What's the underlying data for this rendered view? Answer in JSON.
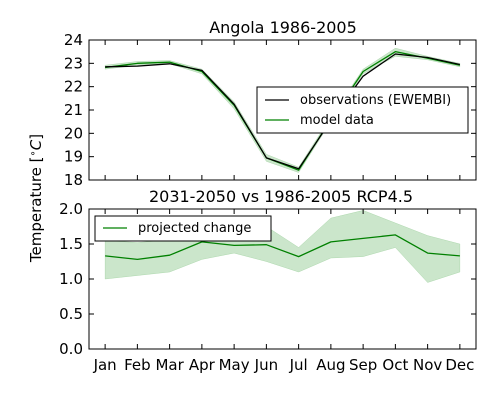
{
  "chart_data": [
    {
      "type": "line",
      "title": "Angola  1986-2005",
      "ylabel": "Temperature [$^\\circ C$]",
      "ylabel_parts": {
        "prefix": "Temperature [",
        "sup": "∘",
        "unit": "C",
        "suffix": "]"
      },
      "ylim": [
        18,
        24
      ],
      "yticks": [
        18,
        19,
        20,
        21,
        22,
        23,
        24
      ],
      "categories": [
        "Jan",
        "Feb",
        "Mar",
        "Apr",
        "May",
        "Jun",
        "Jul",
        "Aug",
        "Sep",
        "Oct",
        "Nov",
        "Dec"
      ],
      "legend_position": "center-right",
      "series": [
        {
          "name": "observations (EWEMBI)",
          "color": "#000000",
          "values": [
            22.85,
            22.88,
            22.98,
            22.7,
            21.25,
            18.95,
            18.48,
            20.55,
            22.45,
            23.4,
            23.25,
            22.95
          ]
        },
        {
          "name": "model data",
          "color": "#008000",
          "values": [
            22.82,
            23.0,
            23.05,
            22.65,
            21.2,
            18.95,
            18.42,
            20.6,
            22.65,
            23.5,
            23.22,
            22.92
          ],
          "band_lower": [
            22.75,
            22.92,
            22.98,
            22.55,
            21.05,
            18.8,
            18.32,
            20.5,
            22.55,
            23.3,
            23.15,
            22.85
          ],
          "band_upper": [
            22.92,
            23.08,
            23.12,
            22.75,
            21.35,
            19.1,
            18.55,
            20.7,
            22.75,
            23.65,
            23.3,
            23.0
          ],
          "band_color": "#8cc88c"
        }
      ]
    },
    {
      "type": "line",
      "title": "2031-2050 vs 1986-2005 RCP4.5",
      "ylim": [
        0,
        2
      ],
      "yticks": [
        "0.0",
        "0.5",
        "1.0",
        "1.5",
        "2.0"
      ],
      "categories": [
        "Jan",
        "Feb",
        "Mar",
        "Apr",
        "May",
        "Jun",
        "Jul",
        "Aug",
        "Sep",
        "Oct",
        "Nov",
        "Dec"
      ],
      "legend_position": "top-left",
      "series": [
        {
          "name": "projected change",
          "color": "#008000",
          "values": [
            1.33,
            1.28,
            1.34,
            1.53,
            1.48,
            1.49,
            1.32,
            1.53,
            1.58,
            1.63,
            1.37,
            1.33
          ],
          "band_lower": [
            1.0,
            1.05,
            1.1,
            1.28,
            1.37,
            1.25,
            1.1,
            1.3,
            1.32,
            1.45,
            0.95,
            1.1
          ],
          "band_upper": [
            1.55,
            1.52,
            1.56,
            1.75,
            1.72,
            1.75,
            1.45,
            1.87,
            1.98,
            1.8,
            1.62,
            1.5
          ],
          "band_color": "#8cc88c"
        }
      ]
    }
  ]
}
